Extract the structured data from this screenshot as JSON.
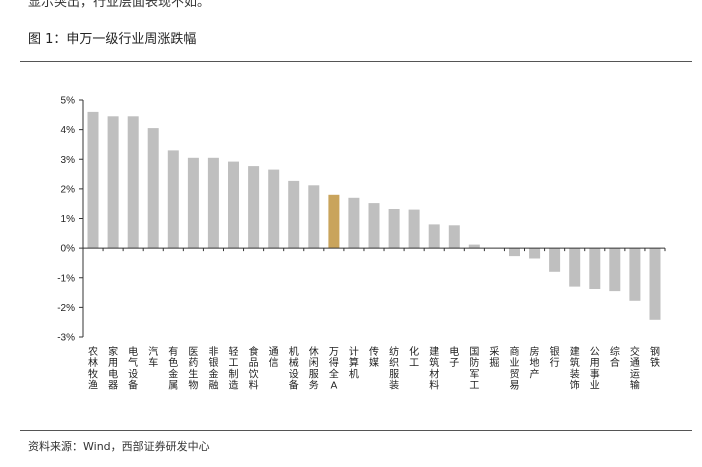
{
  "top_fragment": "显示突出，行业层面表现不如。",
  "figure_title": "图 1：申万一级行业周涨跌幅",
  "source_note": "资料来源：Wind，西部证券研发中心",
  "colors": {
    "bar": "#bfbfbf",
    "highlight": "#c9a45c",
    "axis": "#333333"
  },
  "chart_data": {
    "type": "bar",
    "title": "",
    "xlabel": "",
    "ylabel": "",
    "ylim": [
      -3,
      5
    ],
    "yticks": [
      -3,
      -2,
      -1,
      0,
      1,
      2,
      3,
      4,
      5
    ],
    "ytick_labels": [
      "-3%",
      "-2%",
      "-1%",
      "0%",
      "1%",
      "2%",
      "3%",
      "4%",
      "5%"
    ],
    "highlight_category": "万得全A",
    "categories": [
      "农林牧渔",
      "家用电器",
      "电气设备",
      "汽车",
      "有色金属",
      "医药生物",
      "非银金融",
      "轻工制造",
      "食品饮料",
      "通信",
      "机械设备",
      "休闲服务",
      "万得全A",
      "计算机",
      "传媒",
      "纺织服装",
      "化工",
      "建筑材料",
      "电子",
      "国防军工",
      "采掘",
      "商业贸易",
      "房地产",
      "银行",
      "建筑装饰",
      "公用事业",
      "综合",
      "交通运输",
      "钢铁"
    ],
    "values": [
      4.6,
      4.45,
      4.45,
      4.05,
      3.3,
      3.05,
      3.05,
      2.92,
      2.77,
      2.65,
      2.27,
      2.12,
      1.8,
      1.7,
      1.52,
      1.32,
      1.3,
      0.8,
      0.77,
      0.12,
      0.0,
      -0.27,
      -0.35,
      -0.8,
      -1.3,
      -1.38,
      -1.45,
      -1.78,
      -2.42
    ]
  }
}
